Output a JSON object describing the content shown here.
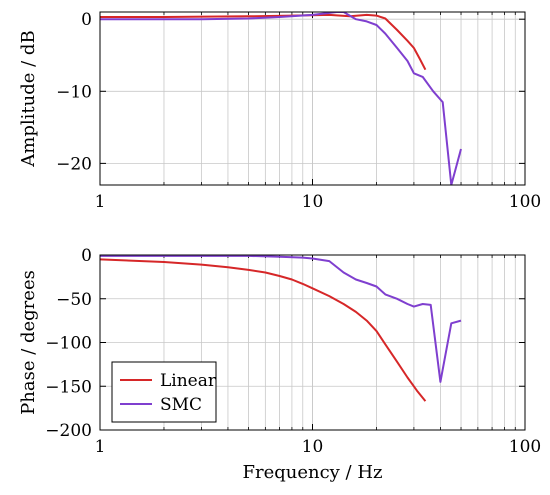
{
  "chart_data": [
    {
      "type": "line",
      "x_scale": "log",
      "xlim": [
        1,
        100
      ],
      "ylim": [
        -23,
        1
      ],
      "xlabel": "",
      "ylabel": "Amplitude / dB",
      "x_ticks": [
        1,
        10,
        100
      ],
      "x_tick_labels": [
        "1",
        "10",
        "100"
      ],
      "y_ticks": [
        0,
        -10,
        -20
      ],
      "y_tick_labels": [
        "0",
        "−10",
        "−20"
      ],
      "grid": true,
      "series": [
        {
          "name": "Linear",
          "color": "#d62728",
          "points": [
            [
              1,
              0.3
            ],
            [
              2,
              0.3
            ],
            [
              5,
              0.4
            ],
            [
              8,
              0.5
            ],
            [
              12,
              0.6
            ],
            [
              15,
              0.4
            ],
            [
              18,
              0.6
            ],
            [
              20,
              0.5
            ],
            [
              22,
              0.1
            ],
            [
              25,
              -1.5
            ],
            [
              28,
              -3.0
            ],
            [
              30,
              -4.0
            ],
            [
              32,
              -5.5
            ],
            [
              34,
              -7.0
            ]
          ]
        },
        {
          "name": "SMC",
          "color": "#7f3fcf",
          "points": [
            [
              1,
              0.0
            ],
            [
              3,
              0.0
            ],
            [
              5,
              0.1
            ],
            [
              7,
              0.3
            ],
            [
              10,
              0.6
            ],
            [
              13,
              1.0
            ],
            [
              14,
              1.0
            ],
            [
              16,
              0.0
            ],
            [
              18,
              -0.3
            ],
            [
              20,
              -0.8
            ],
            [
              22,
              -2.0
            ],
            [
              25,
              -4.0
            ],
            [
              28,
              -5.8
            ],
            [
              30,
              -7.5
            ],
            [
              33,
              -8.0
            ],
            [
              37,
              -10.0
            ],
            [
              41,
              -11.5
            ],
            [
              45,
              -23.0
            ],
            [
              50,
              -18.0
            ]
          ]
        }
      ]
    },
    {
      "type": "line",
      "x_scale": "log",
      "xlim": [
        1,
        100
      ],
      "ylim": [
        -200,
        0
      ],
      "xlabel": "Frequency / Hz",
      "ylabel": "Phase / degrees",
      "x_ticks": [
        1,
        10,
        100
      ],
      "x_tick_labels": [
        "1",
        "10",
        "100"
      ],
      "y_ticks": [
        0,
        -50,
        -100,
        -150,
        -200
      ],
      "y_tick_labels": [
        "0",
        "−50",
        "−100",
        "−150",
        "−200"
      ],
      "grid": true,
      "legend": {
        "position": "bottom-left",
        "entries": [
          "Linear",
          "SMC"
        ]
      },
      "series": [
        {
          "name": "Linear",
          "color": "#d62728",
          "points": [
            [
              1,
              -5
            ],
            [
              2,
              -8
            ],
            [
              3,
              -11
            ],
            [
              4,
              -14
            ],
            [
              5,
              -17
            ],
            [
              6,
              -20
            ],
            [
              7,
              -24
            ],
            [
              8,
              -28
            ],
            [
              9,
              -33
            ],
            [
              10,
              -38
            ],
            [
              12,
              -47
            ],
            [
              14,
              -56
            ],
            [
              16,
              -65
            ],
            [
              18,
              -75
            ],
            [
              20,
              -87
            ],
            [
              22,
              -102
            ],
            [
              25,
              -122
            ],
            [
              28,
              -140
            ],
            [
              31,
              -155
            ],
            [
              34,
              -167
            ]
          ]
        },
        {
          "name": "SMC",
          "color": "#7f3fcf",
          "points": [
            [
              1,
              -1
            ],
            [
              3,
              -1
            ],
            [
              5,
              -1
            ],
            [
              7,
              -2
            ],
            [
              9,
              -3
            ],
            [
              10,
              -4
            ],
            [
              12,
              -7
            ],
            [
              14,
              -20
            ],
            [
              16,
              -28
            ],
            [
              18,
              -32
            ],
            [
              20,
              -36
            ],
            [
              22,
              -45
            ],
            [
              25,
              -50
            ],
            [
              28,
              -56
            ],
            [
              30,
              -59
            ],
            [
              33,
              -56
            ],
            [
              36,
              -57
            ],
            [
              40,
              -145
            ],
            [
              45,
              -78
            ],
            [
              50,
              -75
            ]
          ]
        }
      ]
    }
  ]
}
